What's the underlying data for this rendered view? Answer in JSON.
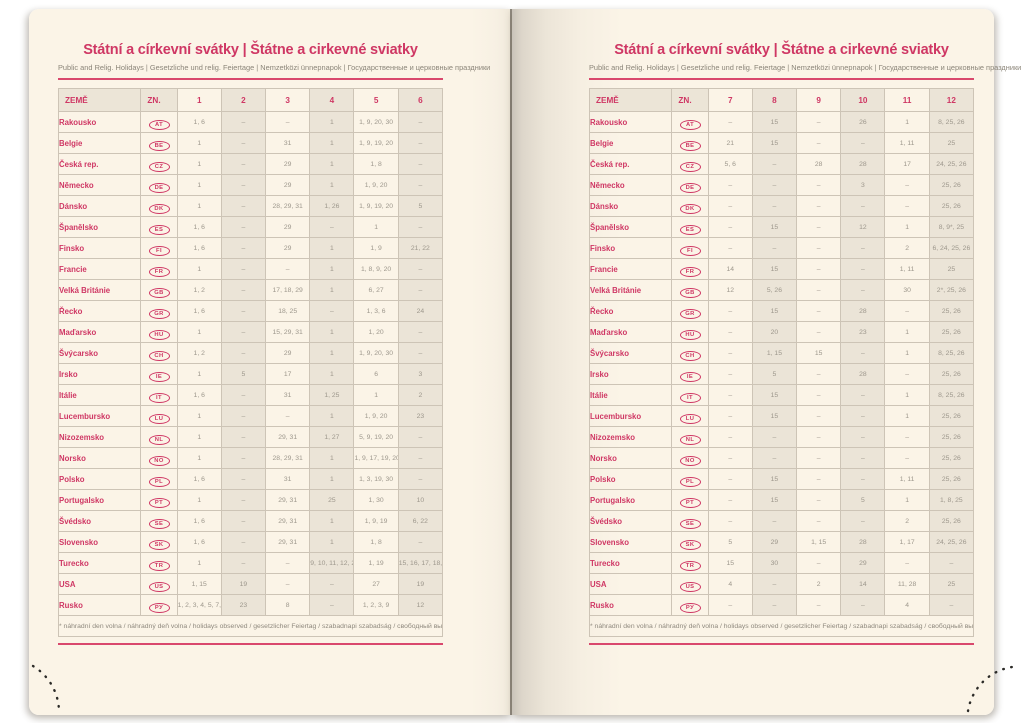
{
  "book": {
    "title": "Státní a církevní svátky | Štátne a cirkevné sviatky",
    "subtitle": "Public and Relig. Holidays | Gesetzliche und relig. Feiertage | Nemzetközi ünnepnapok | Государственные и церковные праздники",
    "footnote": "* náhradní den volna / náhradný deň volna / holidays observed / gesetzlicher Feiertag / szabadnapi szabadság / свободный выходной",
    "accent_color": "#cf3764",
    "page_color": "#fbf4e7",
    "grid_color": "#cdc4b6",
    "shade_color": "#ebe4d7",
    "value_color": "#9d978c"
  },
  "left_page": {
    "table": {
      "headers": [
        "ZEMĚ",
        "ZN.",
        "1",
        "2",
        "3",
        "4",
        "5",
        "6"
      ],
      "rows": [
        {
          "country": "Rakousko",
          "code": "AT",
          "values": [
            "1, 6",
            "–",
            "–",
            "1",
            "1, 9, 20, 30",
            "–"
          ]
        },
        {
          "country": "Belgie",
          "code": "BE",
          "values": [
            "1",
            "–",
            "31",
            "1",
            "1, 9, 19, 20",
            "–"
          ]
        },
        {
          "country": "Česká rep.",
          "code": "CZ",
          "values": [
            "1",
            "–",
            "29",
            "1",
            "1, 8",
            "–"
          ]
        },
        {
          "country": "Německo",
          "code": "DE",
          "values": [
            "1",
            "–",
            "29",
            "1",
            "1, 9, 20",
            "–"
          ]
        },
        {
          "country": "Dánsko",
          "code": "DK",
          "values": [
            "1",
            "–",
            "28, 29, 31",
            "1, 26",
            "1, 9, 19, 20",
            "5"
          ]
        },
        {
          "country": "Španělsko",
          "code": "ES",
          "values": [
            "1, 6",
            "–",
            "29",
            "–",
            "1",
            "–"
          ]
        },
        {
          "country": "Finsko",
          "code": "FI",
          "values": [
            "1, 6",
            "–",
            "29",
            "1",
            "1, 9",
            "21, 22"
          ]
        },
        {
          "country": "Francie",
          "code": "FR",
          "values": [
            "1",
            "–",
            "–",
            "1",
            "1, 8, 9, 20",
            "–"
          ]
        },
        {
          "country": "Velká Británie",
          "code": "GB",
          "values": [
            "1, 2",
            "–",
            "17, 18, 29",
            "1",
            "6, 27",
            "–"
          ]
        },
        {
          "country": "Řecko",
          "code": "GR",
          "values": [
            "1, 6",
            "–",
            "18, 25",
            "–",
            "1, 3, 6",
            "24"
          ]
        },
        {
          "country": "Maďarsko",
          "code": "HU",
          "values": [
            "1",
            "–",
            "15, 29, 31",
            "1",
            "1, 20",
            "–"
          ]
        },
        {
          "country": "Švýcarsko",
          "code": "CH",
          "values": [
            "1, 2",
            "–",
            "29",
            "1",
            "1, 9, 20, 30",
            "–"
          ]
        },
        {
          "country": "Irsko",
          "code": "IE",
          "values": [
            "1",
            "5",
            "17",
            "1",
            "6",
            "3"
          ]
        },
        {
          "country": "Itálie",
          "code": "IT",
          "values": [
            "1, 6",
            "–",
            "31",
            "1, 25",
            "1",
            "2"
          ]
        },
        {
          "country": "Lucembursko",
          "code": "LU",
          "values": [
            "1",
            "–",
            "–",
            "1",
            "1, 9, 20",
            "23"
          ]
        },
        {
          "country": "Nizozemsko",
          "code": "NL",
          "values": [
            "1",
            "–",
            "29, 31",
            "1, 27",
            "5, 9, 19, 20",
            "–"
          ]
        },
        {
          "country": "Norsko",
          "code": "NO",
          "values": [
            "1",
            "–",
            "28, 29, 31",
            "1",
            "1, 9, 17, 19, 20",
            "–"
          ]
        },
        {
          "country": "Polsko",
          "code": "PL",
          "values": [
            "1, 6",
            "–",
            "31",
            "1",
            "1, 3, 19, 30",
            "–"
          ]
        },
        {
          "country": "Portugalsko",
          "code": "PT",
          "values": [
            "1",
            "–",
            "29, 31",
            "25",
            "1, 30",
            "10"
          ]
        },
        {
          "country": "Švédsko",
          "code": "SE",
          "values": [
            "1, 6",
            "–",
            "29, 31",
            "1",
            "1, 9, 19",
            "6, 22"
          ]
        },
        {
          "country": "Slovensko",
          "code": "SK",
          "values": [
            "1, 6",
            "–",
            "29, 31",
            "1",
            "1, 8",
            "–"
          ]
        },
        {
          "country": "Turecko",
          "code": "TR",
          "values": [
            "1",
            "–",
            "–",
            "9, 10, 11, 12, 23",
            "1, 19",
            "15, 16, 17, 18, 19"
          ]
        },
        {
          "country": "USA",
          "code": "US",
          "values": [
            "1, 15",
            "19",
            "–",
            "–",
            "27",
            "19"
          ]
        },
        {
          "country": "Rusko",
          "code": "РУ",
          "values": [
            "1, 2, 3, 4, 5, 7, 8",
            "23",
            "8",
            "–",
            "1, 2, 3, 9",
            "12"
          ]
        }
      ]
    }
  },
  "right_page": {
    "table": {
      "headers": [
        "ZEMĚ",
        "ZN.",
        "7",
        "8",
        "9",
        "10",
        "11",
        "12"
      ],
      "rows": [
        {
          "country": "Rakousko",
          "code": "AT",
          "values": [
            "–",
            "15",
            "–",
            "26",
            "1",
            "8, 25, 26"
          ]
        },
        {
          "country": "Belgie",
          "code": "BE",
          "values": [
            "21",
            "15",
            "–",
            "–",
            "1, 11",
            "25"
          ]
        },
        {
          "country": "Česká rep.",
          "code": "CZ",
          "values": [
            "5, 6",
            "–",
            "28",
            "28",
            "17",
            "24, 25, 26"
          ]
        },
        {
          "country": "Německo",
          "code": "DE",
          "values": [
            "–",
            "–",
            "–",
            "3",
            "–",
            "25, 26"
          ]
        },
        {
          "country": "Dánsko",
          "code": "DK",
          "values": [
            "–",
            "–",
            "–",
            "–",
            "–",
            "25, 26"
          ]
        },
        {
          "country": "Španělsko",
          "code": "ES",
          "values": [
            "–",
            "15",
            "–",
            "12",
            "1",
            "8, 9*, 25"
          ]
        },
        {
          "country": "Finsko",
          "code": "FI",
          "values": [
            "–",
            "–",
            "–",
            "–",
            "2",
            "6, 24, 25, 26"
          ]
        },
        {
          "country": "Francie",
          "code": "FR",
          "values": [
            "14",
            "15",
            "–",
            "–",
            "1, 11",
            "25"
          ]
        },
        {
          "country": "Velká Británie",
          "code": "GB",
          "values": [
            "12",
            "5, 26",
            "–",
            "–",
            "30",
            "2*, 25, 26"
          ]
        },
        {
          "country": "Řecko",
          "code": "GR",
          "values": [
            "–",
            "15",
            "–",
            "28",
            "–",
            "25, 26"
          ]
        },
        {
          "country": "Maďarsko",
          "code": "HU",
          "values": [
            "–",
            "20",
            "–",
            "23",
            "1",
            "25, 26"
          ]
        },
        {
          "country": "Švýcarsko",
          "code": "CH",
          "values": [
            "–",
            "1, 15",
            "15",
            "–",
            "1",
            "8, 25, 26"
          ]
        },
        {
          "country": "Irsko",
          "code": "IE",
          "values": [
            "–",
            "5",
            "–",
            "28",
            "–",
            "25, 26"
          ]
        },
        {
          "country": "Itálie",
          "code": "IT",
          "values": [
            "–",
            "15",
            "–",
            "–",
            "1",
            "8, 25, 26"
          ]
        },
        {
          "country": "Lucembursko",
          "code": "LU",
          "values": [
            "–",
            "15",
            "–",
            "–",
            "1",
            "25, 26"
          ]
        },
        {
          "country": "Nizozemsko",
          "code": "NL",
          "values": [
            "–",
            "–",
            "–",
            "–",
            "–",
            "25, 26"
          ]
        },
        {
          "country": "Norsko",
          "code": "NO",
          "values": [
            "–",
            "–",
            "–",
            "–",
            "–",
            "25, 26"
          ]
        },
        {
          "country": "Polsko",
          "code": "PL",
          "values": [
            "–",
            "15",
            "–",
            "–",
            "1, 11",
            "25, 26"
          ]
        },
        {
          "country": "Portugalsko",
          "code": "PT",
          "values": [
            "–",
            "15",
            "–",
            "5",
            "1",
            "1, 8, 25"
          ]
        },
        {
          "country": "Švédsko",
          "code": "SE",
          "values": [
            "–",
            "–",
            "–",
            "–",
            "2",
            "25, 26"
          ]
        },
        {
          "country": "Slovensko",
          "code": "SK",
          "values": [
            "5",
            "29",
            "1, 15",
            "28",
            "1, 17",
            "24, 25, 26"
          ]
        },
        {
          "country": "Turecko",
          "code": "TR",
          "values": [
            "15",
            "30",
            "–",
            "29",
            "–",
            "–"
          ]
        },
        {
          "country": "USA",
          "code": "US",
          "values": [
            "4",
            "–",
            "2",
            "14",
            "11, 28",
            "25"
          ]
        },
        {
          "country": "Rusko",
          "code": "РУ",
          "values": [
            "–",
            "–",
            "–",
            "–",
            "4",
            "–"
          ]
        }
      ]
    }
  }
}
